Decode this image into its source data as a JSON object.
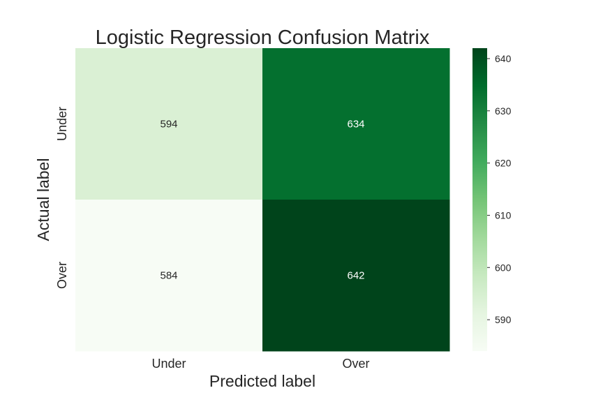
{
  "chart_data": {
    "type": "heatmap",
    "title": "Logistic Regression Confusion Matrix",
    "xlabel": "Predicted label",
    "ylabel": "Actual label",
    "x_categories": [
      "Under",
      "Over"
    ],
    "y_categories": [
      "Under",
      "Over"
    ],
    "values": [
      [
        594,
        634
      ],
      [
        584,
        642
      ]
    ],
    "colorbar": {
      "min": 584,
      "max": 642,
      "ticks": [
        "590",
        "600",
        "610",
        "620",
        "630",
        "640"
      ],
      "colormap": "Greens"
    },
    "grid": false
  }
}
